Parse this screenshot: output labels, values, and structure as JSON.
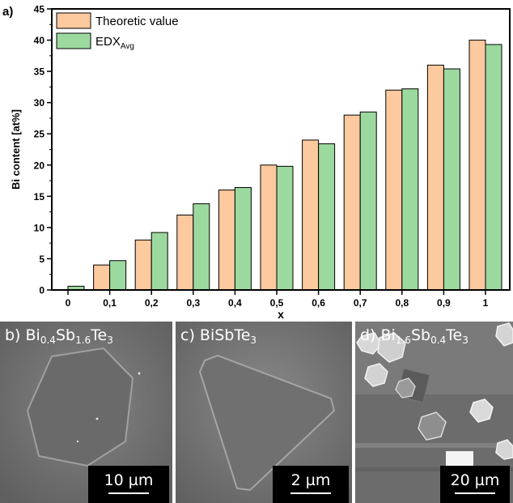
{
  "figure": {
    "panel_a_label": "a)",
    "panels": [
      {
        "id": "b",
        "label_prefix": "b) ",
        "formula": [
          [
            "Bi",
            "0.4"
          ],
          [
            "Sb",
            "1.6"
          ],
          [
            "Te",
            "3"
          ]
        ],
        "scale_label": "10 µm"
      },
      {
        "id": "c",
        "label_prefix": "c) ",
        "formula": [
          [
            "BiSb",
            ""
          ],
          [
            "Te",
            "3"
          ]
        ],
        "scale_label": "2 µm"
      },
      {
        "id": "d",
        "label_prefix": "d) ",
        "formula": [
          [
            "Bi",
            "1.6"
          ],
          [
            "Sb",
            "0.4"
          ],
          [
            "Te",
            "3"
          ]
        ],
        "scale_label": "20 µm"
      }
    ]
  },
  "chart_data": {
    "type": "bar",
    "categories": [
      "0",
      "0,1",
      "0,2",
      "0,3",
      "0,4",
      "0,5",
      "0,6",
      "0,7",
      "0,8",
      "0,9",
      "1"
    ],
    "series": [
      {
        "name": "Theoretic value",
        "values": [
          0,
          4,
          8,
          12,
          16,
          20,
          24,
          28,
          32,
          36,
          40
        ],
        "color": "#fdc99e"
      },
      {
        "name": "EDX",
        "name_sub": "Avg",
        "values": [
          0.6,
          4.7,
          9.2,
          13.8,
          16.4,
          19.8,
          23.4,
          28.5,
          32.2,
          35.4,
          39.3
        ],
        "color": "#9cd99f"
      }
    ],
    "xlabel": "x",
    "ylabel": "Bi content [at%]",
    "ylim": [
      0,
      45
    ],
    "yticks": [
      0,
      5,
      10,
      15,
      20,
      25,
      30,
      35,
      40,
      45
    ],
    "legend_position": "top-left"
  }
}
